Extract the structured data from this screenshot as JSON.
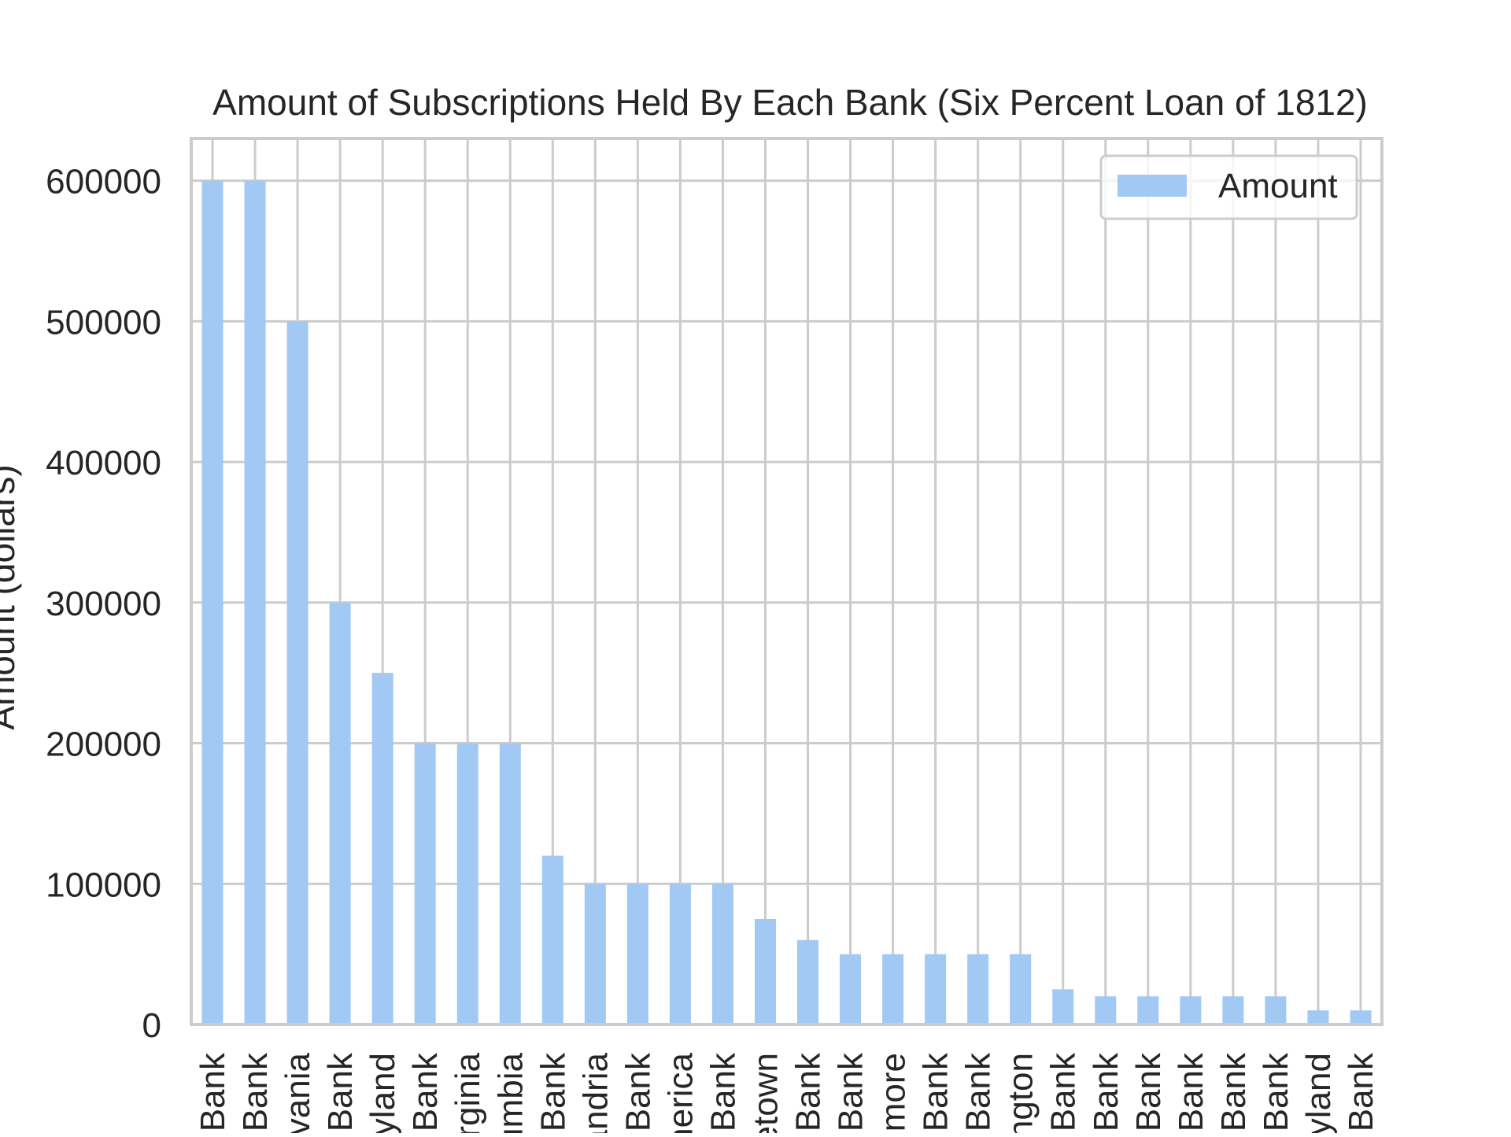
{
  "chart_data": {
    "type": "bar",
    "title": "Amount of Subscriptions Held By Each Bank (Six Percent Loan of 1812)",
    "xlabel": "",
    "ylabel": "Amount (dollars)",
    "ylim": [
      0,
      630000
    ],
    "yticks": [
      0,
      100000,
      200000,
      300000,
      400000,
      500000,
      600000
    ],
    "ytick_labels": [
      "0",
      "100000",
      "200000",
      "300000",
      "400000",
      "500000",
      "600000"
    ],
    "grid": true,
    "legend_position": "upper right",
    "categories": [
      "Bank",
      "Bank",
      "lvania",
      "Bank",
      "ryland",
      "Bank",
      "irginia",
      "umbia",
      "Bank",
      "andria",
      "Bank",
      "nerica",
      "Bank",
      "etown",
      "Bank",
      "Bank",
      "imore",
      "Bank",
      "Bank",
      "ngton",
      "Bank",
      "Bank",
      "Bank",
      "Bank",
      "Bank",
      "Bank",
      "ryland",
      "Bank"
    ],
    "series": [
      {
        "name": "Amount",
        "color": "#a1c9f4",
        "values": [
          600000,
          600000,
          500000,
          300000,
          250000,
          200000,
          200000,
          200000,
          120000,
          100000,
          100000,
          100000,
          100000,
          75000,
          60000,
          50000,
          50000,
          50000,
          50000,
          50000,
          25000,
          20000,
          20000,
          20000,
          20000,
          20000,
          10000,
          10000
        ]
      }
    ]
  }
}
